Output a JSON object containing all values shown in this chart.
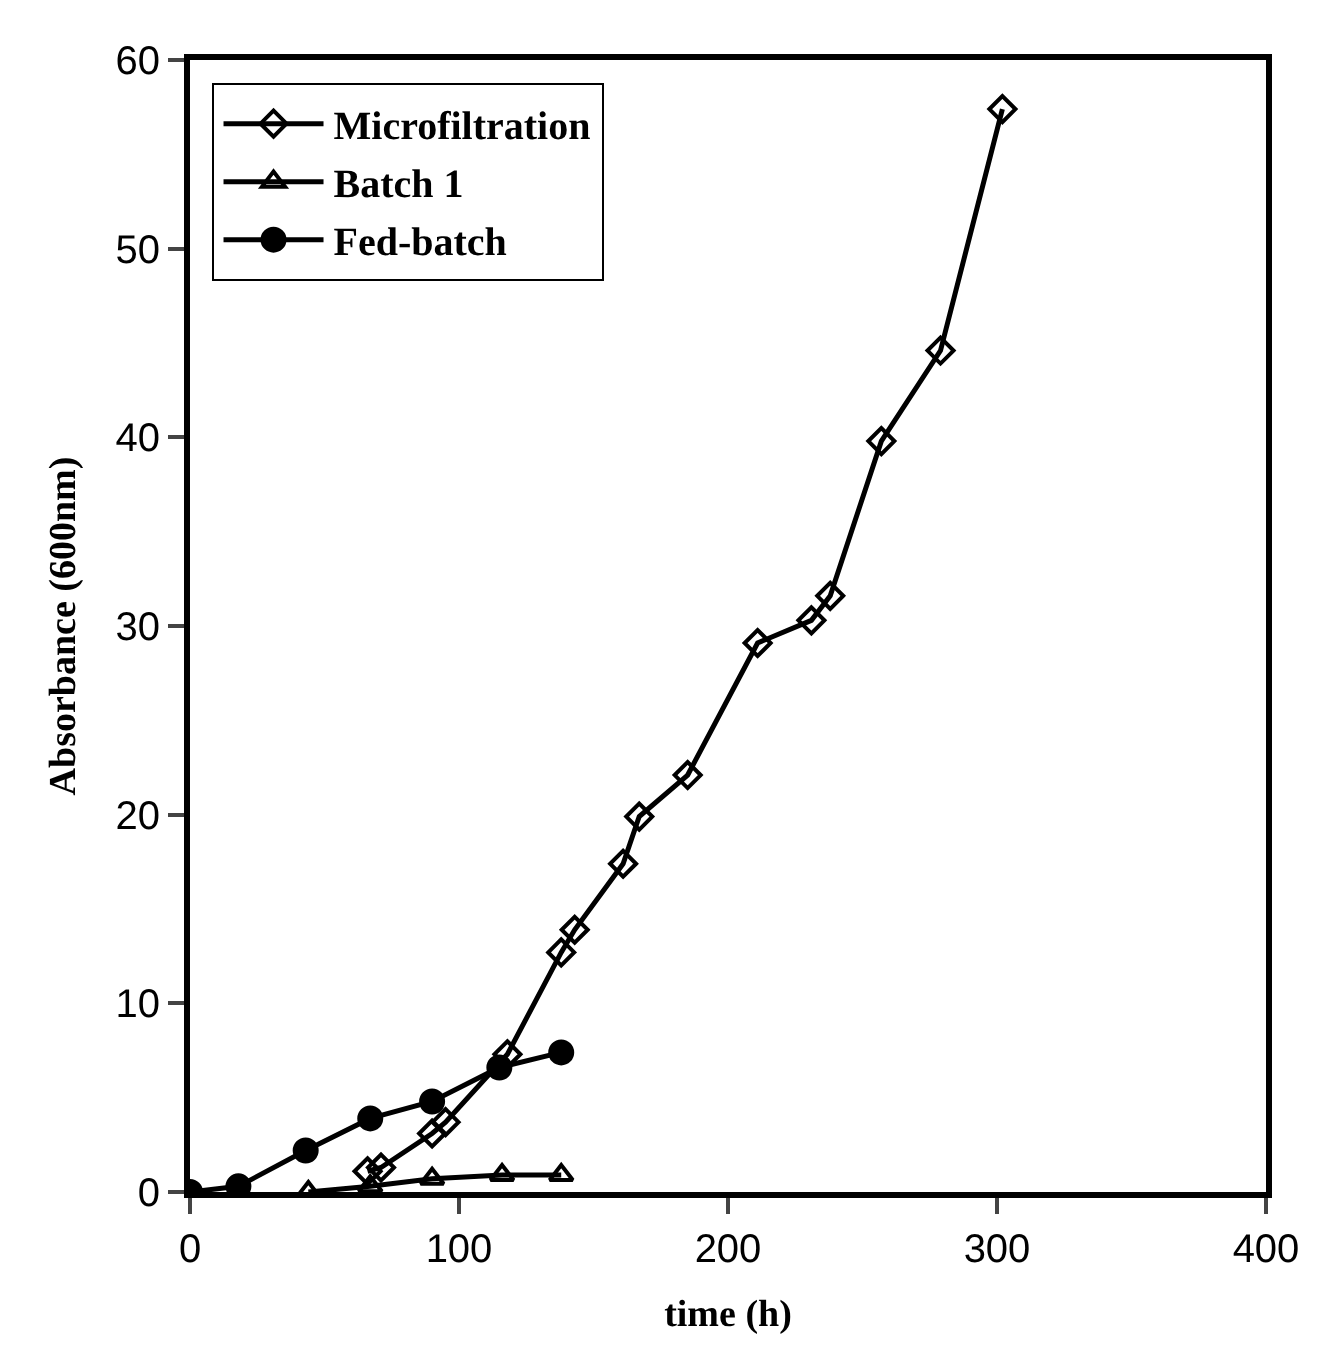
{
  "chart_data": {
    "type": "line",
    "xlabel": "time (h)",
    "ylabel": "Absorbance (600nm)",
    "xlim": [
      0,
      400
    ],
    "xticks": [
      0,
      100,
      200,
      300,
      400
    ],
    "ylim": [
      0,
      60
    ],
    "yticks": [
      0,
      10,
      20,
      30,
      40,
      50,
      60
    ],
    "legend": "top left",
    "line_style": "solid",
    "series": [
      {
        "name": "Microfiltration",
        "color": "#000000",
        "marker": "diamond",
        "x": [
          66,
          71,
          90,
          95,
          118,
          138,
          143,
          161,
          167,
          185,
          211,
          231,
          238,
          257,
          279,
          302
        ],
        "values": [
          1.1,
          1.3,
          3.1,
          3.7,
          7.3,
          12.7,
          13.9,
          17.4,
          19.9,
          22.1,
          29.1,
          30.3,
          31.6,
          39.8,
          44.6,
          57.4
        ]
      },
      {
        "name": "Batch 1",
        "color": "#000000",
        "marker": "triangle",
        "x": [
          44,
          67,
          90,
          116,
          138
        ],
        "values": [
          0,
          0.3,
          0.7,
          0.9,
          0.9
        ]
      },
      {
        "name": "Fed-batch",
        "color": "#000000",
        "marker": "circle",
        "x": [
          0,
          18,
          43,
          67,
          90,
          115,
          138
        ],
        "values": [
          0,
          0.3,
          2.2,
          3.9,
          4.8,
          6.6,
          7.4
        ]
      }
    ]
  }
}
